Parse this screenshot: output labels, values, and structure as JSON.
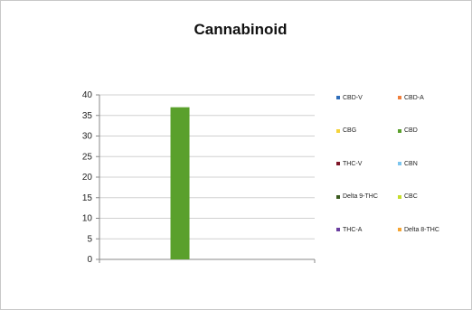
{
  "chart_data": {
    "type": "bar",
    "title": "Cannabinoid",
    "xlabel": "",
    "ylabel": "",
    "ylim": [
      0,
      40
    ],
    "yticks": [
      "0",
      "5",
      "10",
      "15",
      "20",
      "25",
      "30",
      "35",
      "40"
    ],
    "grid": true,
    "legend_position": "right",
    "categories": [
      ""
    ],
    "series": [
      {
        "name": "CBD-V",
        "values": [
          0
        ],
        "color": "#2f6eba"
      },
      {
        "name": "CBD-A",
        "values": [
          0
        ],
        "color": "#f07f3c"
      },
      {
        "name": "CBG",
        "values": [
          0
        ],
        "color": "#f5d33a"
      },
      {
        "name": "CBD",
        "values": [
          37
        ],
        "color": "#5aa02c"
      },
      {
        "name": "THC-V",
        "values": [
          0
        ],
        "color": "#7e1628"
      },
      {
        "name": "CBN",
        "values": [
          0
        ],
        "color": "#7cc5ee"
      },
      {
        "name": "Delta 9-THC",
        "values": [
          0
        ],
        "color": "#3a5a1f"
      },
      {
        "name": "CBC",
        "values": [
          0
        ],
        "color": "#c5dd2a"
      },
      {
        "name": "THC-A",
        "values": [
          0
        ],
        "color": "#6b3fa0"
      },
      {
        "name": "Delta 8-THC",
        "values": [
          0
        ],
        "color": "#f5a533"
      }
    ]
  }
}
